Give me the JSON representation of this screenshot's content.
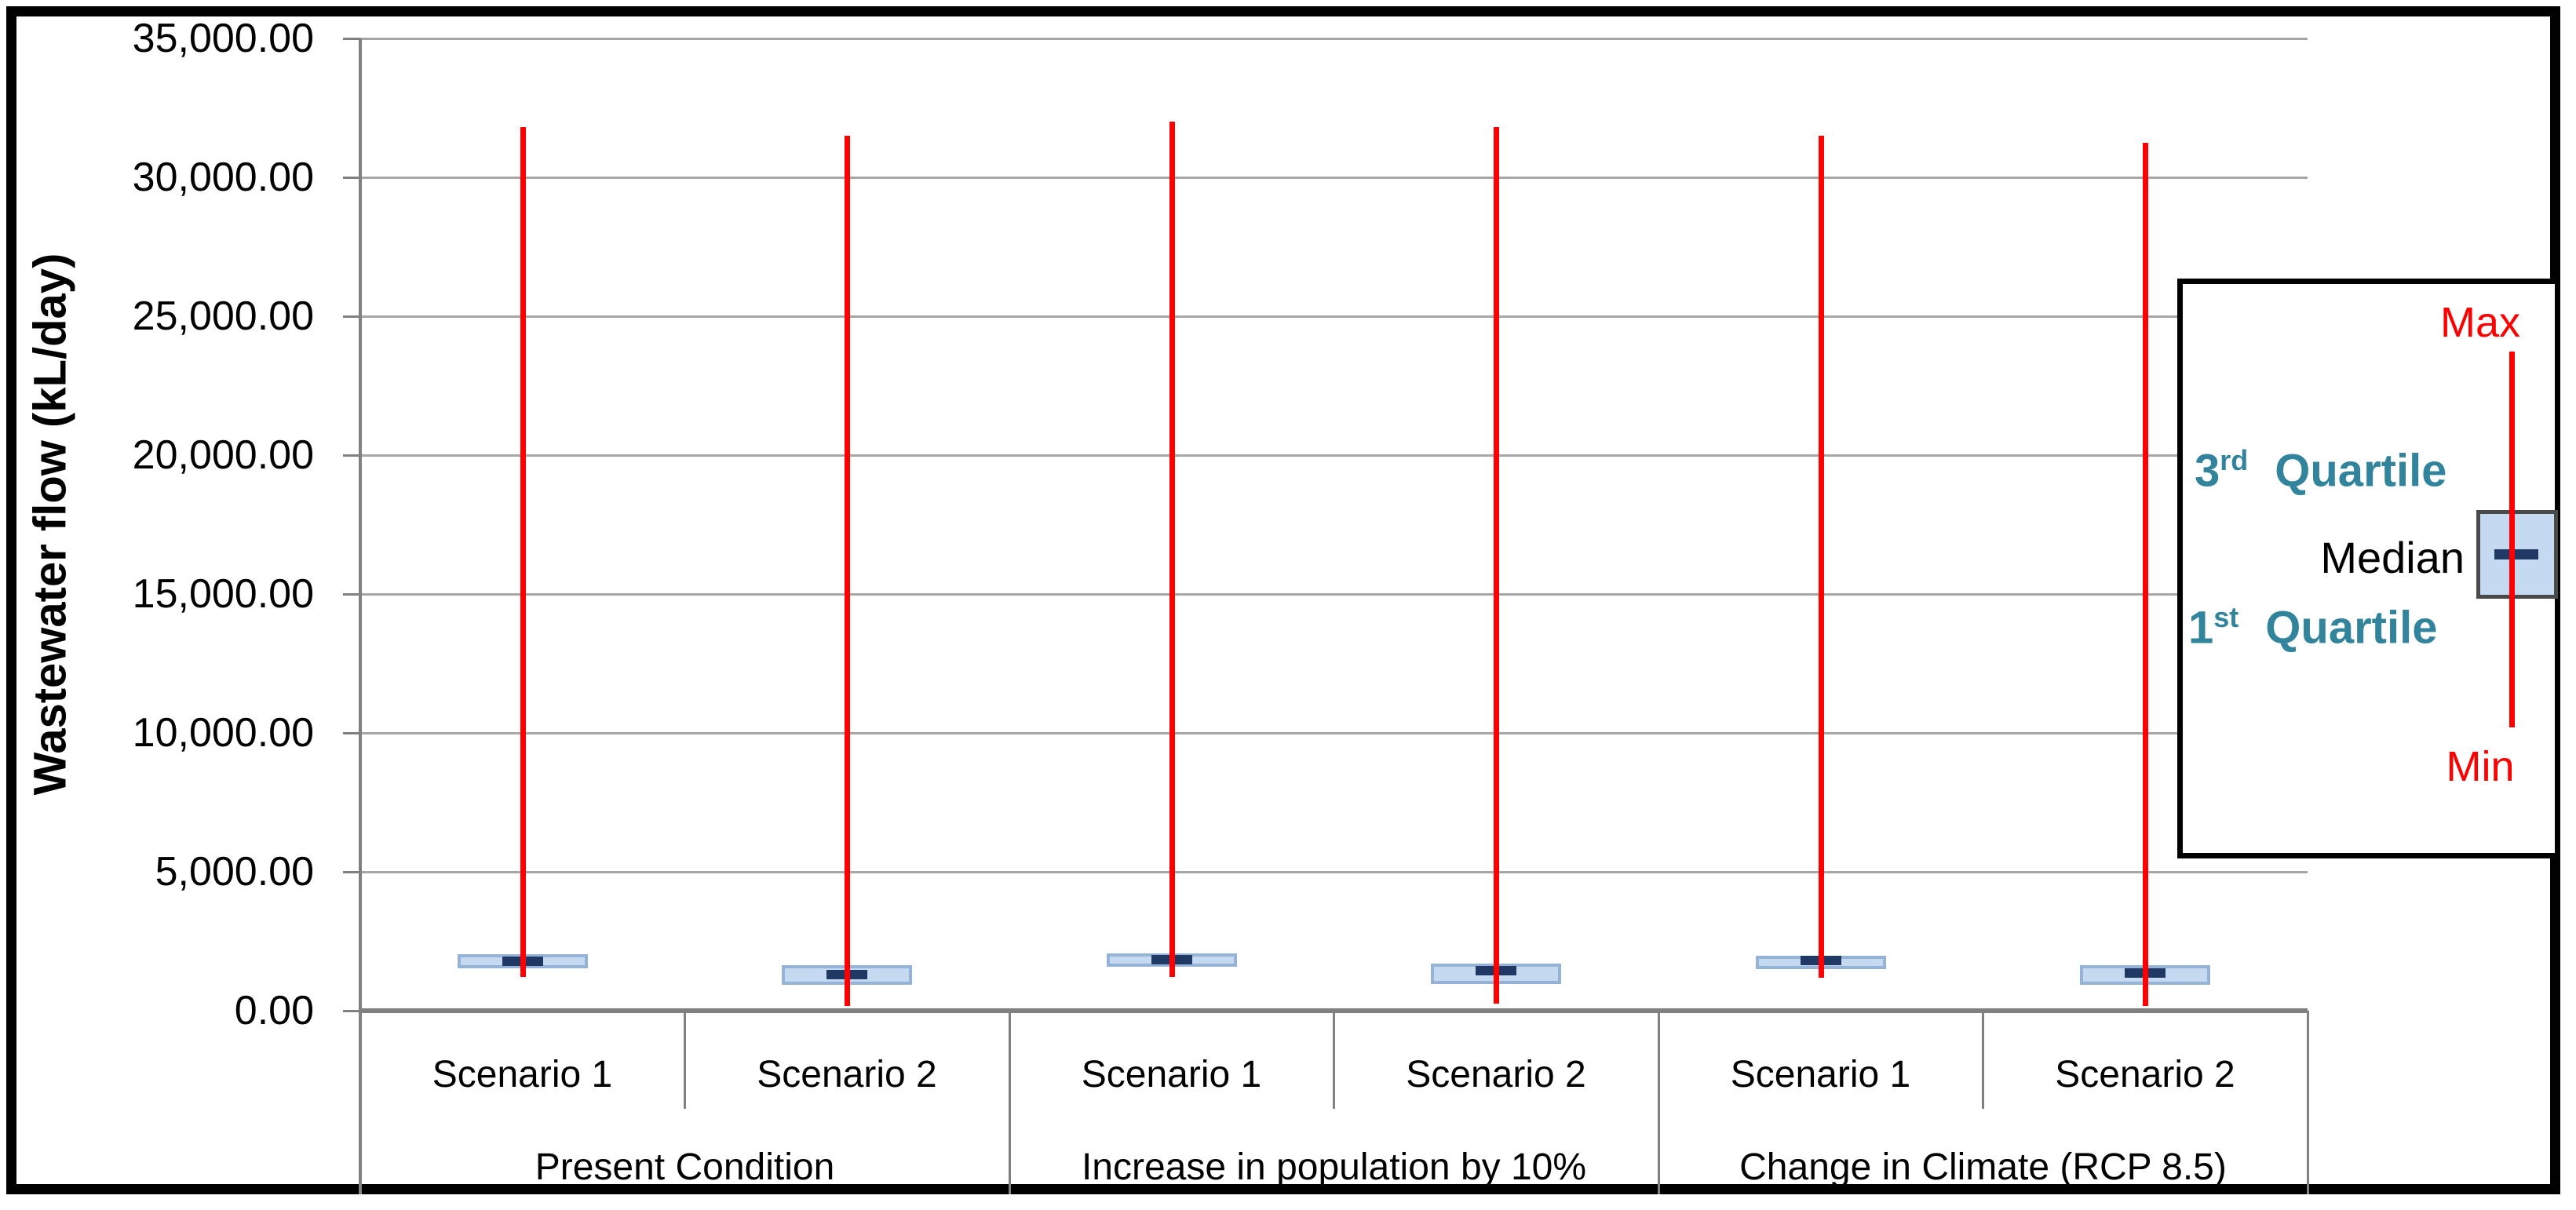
{
  "y_axis": {
    "title": "Wastewater flow (kL/day)",
    "ticks": [
      {
        "label": "0.00",
        "value": 0
      },
      {
        "label": "5,000.00",
        "value": 5000
      },
      {
        "label": "10,000.00",
        "value": 10000
      },
      {
        "label": "15,000.00",
        "value": 15000
      },
      {
        "label": "20,000.00",
        "value": 20000
      },
      {
        "label": "25,000.00",
        "value": 25000
      },
      {
        "label": "30,000.00",
        "value": 30000
      },
      {
        "label": "35,000.00",
        "value": 35000
      }
    ]
  },
  "x_axis": {
    "groups": [
      {
        "label": "Present Condition",
        "scenarios": [
          "Scenario 1",
          "Scenario 2"
        ]
      },
      {
        "label": "Increase in population by 10%",
        "scenarios": [
          "Scenario 1",
          "Scenario 2"
        ]
      },
      {
        "label": "Change in Climate (RCP 8.5)",
        "scenarios": [
          "Scenario 1",
          "Scenario 2"
        ]
      }
    ]
  },
  "legend": {
    "max_label": "Max",
    "min_label": "Min",
    "q3_num": "3",
    "q3_sup": "rd",
    "q3_word": "Quartile",
    "median_label": "Median",
    "q1_num": "1",
    "q1_sup": "st",
    "q1_word": "Quartile"
  },
  "colors": {
    "box_fill": "#c5d9f1",
    "box_border": "#95b3d7",
    "median_dash": "#1f3864",
    "whisker_red": "#ff0000",
    "gridline_gray": "#a6a6a6",
    "axis_gray": "#808080",
    "quartile_teal": "#31849b",
    "frame_black": "#000000"
  },
  "chart_data": {
    "type": "boxplot",
    "title": "",
    "xlabel": "",
    "ylabel": "Wastewater flow (kL/day)",
    "unit": "kL/day",
    "ylim": [
      0,
      35000
    ],
    "ytick_step": 5000,
    "grid": true,
    "legend_position": "right",
    "groups": [
      "Present Condition",
      "Increase in population by 10%",
      "Change in Climate (RCP 8.5)"
    ],
    "categories": [
      "Scenario 1",
      "Scenario 2",
      "Scenario 1",
      "Scenario 2",
      "Scenario 1",
      "Scenario 2"
    ],
    "series": [
      {
        "group": "Present Condition",
        "scenario": "Scenario 1",
        "min": 1210,
        "q1": 1530,
        "median": 1780,
        "q3": 2030,
        "max": 31800
      },
      {
        "group": "Present Condition",
        "scenario": "Scenario 2",
        "min": 170,
        "q1": 930,
        "median": 1300,
        "q3": 1640,
        "max": 31500
      },
      {
        "group": "Increase in population by 10%",
        "scenario": "Scenario 1",
        "min": 1220,
        "q1": 1580,
        "median": 1840,
        "q3": 2060,
        "max": 32000
      },
      {
        "group": "Increase in population by 10%",
        "scenario": "Scenario 2",
        "min": 250,
        "q1": 960,
        "median": 1440,
        "q3": 1700,
        "max": 31810
      },
      {
        "group": "Change in Climate (RCP 8.5)",
        "scenario": "Scenario 1",
        "min": 1190,
        "q1": 1500,
        "median": 1810,
        "q3": 1980,
        "max": 31500
      },
      {
        "group": "Change in Climate (RCP 8.5)",
        "scenario": "Scenario 2",
        "min": 170,
        "q1": 930,
        "median": 1360,
        "q3": 1640,
        "max": 31240
      }
    ]
  }
}
